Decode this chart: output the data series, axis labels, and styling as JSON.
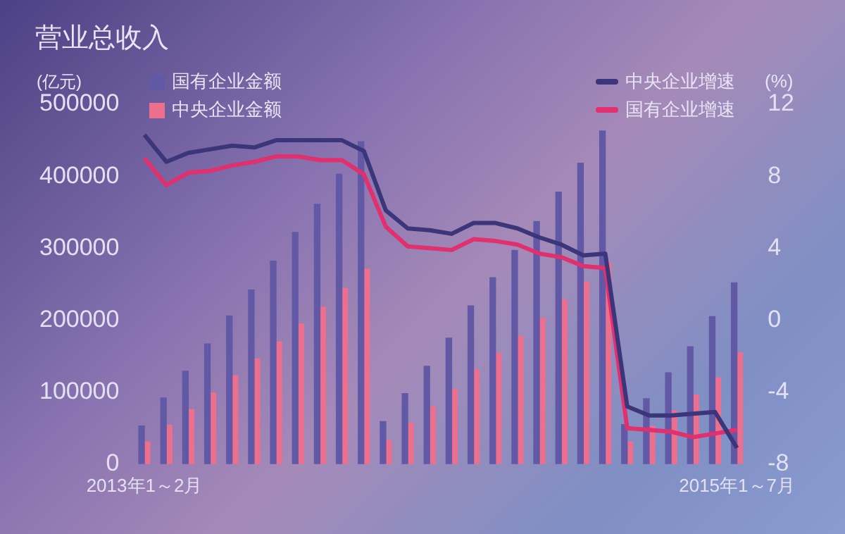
{
  "chart_data": {
    "type": "bar",
    "title": "营业总收入",
    "ylabel": "(亿元)",
    "y2label": "(%)",
    "categories": [
      "2013年1～2月",
      null,
      null,
      null,
      null,
      null,
      null,
      null,
      null,
      null,
      null,
      null,
      null,
      null,
      null,
      null,
      null,
      null,
      null,
      null,
      null,
      null,
      null,
      null,
      null,
      null,
      null,
      "2015年1～7月"
    ],
    "series": [
      {
        "name": "国有企业金额",
        "color": "#6259a6",
        "values": [
          53000,
          92000,
          129000,
          167000,
          206000,
          242000,
          282000,
          322000,
          361000,
          403000,
          448000,
          59000,
          98000,
          136000,
          175000,
          220000,
          259000,
          297000,
          337000,
          378000,
          418000,
          463000,
          55000,
          91000,
          127000,
          163000,
          205000,
          252000
        ]
      },
      {
        "name": "中央企业金额",
        "color": "#ec6f8e",
        "values": [
          31000,
          54000,
          76000,
          99000,
          123000,
          146000,
          170000,
          195000,
          218000,
          244000,
          271000,
          33000,
          57000,
          80000,
          104000,
          131000,
          154000,
          178000,
          203000,
          228000,
          253000,
          280000,
          31000,
          53000,
          74000,
          96000,
          120000,
          155000
        ]
      },
      {
        "name": "中央企业增速",
        "type": "line",
        "axis": "y2",
        "color": "#3b3579",
        "values": [
          10.3,
          8.8,
          9.3,
          9.5,
          9.7,
          9.6,
          10.0,
          10.0,
          10.0,
          10.0,
          9.4,
          6.1,
          5.1,
          5.0,
          4.8,
          5.4,
          5.4,
          5.1,
          4.6,
          4.2,
          3.6,
          3.7,
          -4.8,
          -5.3,
          -5.3,
          -5.2,
          -5.1,
          -7.1
        ]
      },
      {
        "name": "国有企业增速",
        "type": "line",
        "axis": "y2",
        "color": "#e0306e",
        "values": [
          9.0,
          7.5,
          8.2,
          8.3,
          8.6,
          8.8,
          9.1,
          9.1,
          8.9,
          8.9,
          8.1,
          5.2,
          4.1,
          4.0,
          3.9,
          4.5,
          4.4,
          4.2,
          3.7,
          3.5,
          3.0,
          2.9,
          -6.0,
          -6.1,
          -6.2,
          -6.5,
          -6.3,
          -6.1
        ]
      }
    ],
    "ylim": [
      0,
      500000
    ],
    "yticks": [
      0,
      100000,
      200000,
      300000,
      400000,
      500000
    ],
    "y2lim": [
      -8,
      12
    ],
    "y2ticks": [
      -8,
      -4,
      0,
      4,
      8,
      12
    ],
    "grid": false,
    "legend": "top",
    "marker": "none",
    "line_style": "solid"
  }
}
